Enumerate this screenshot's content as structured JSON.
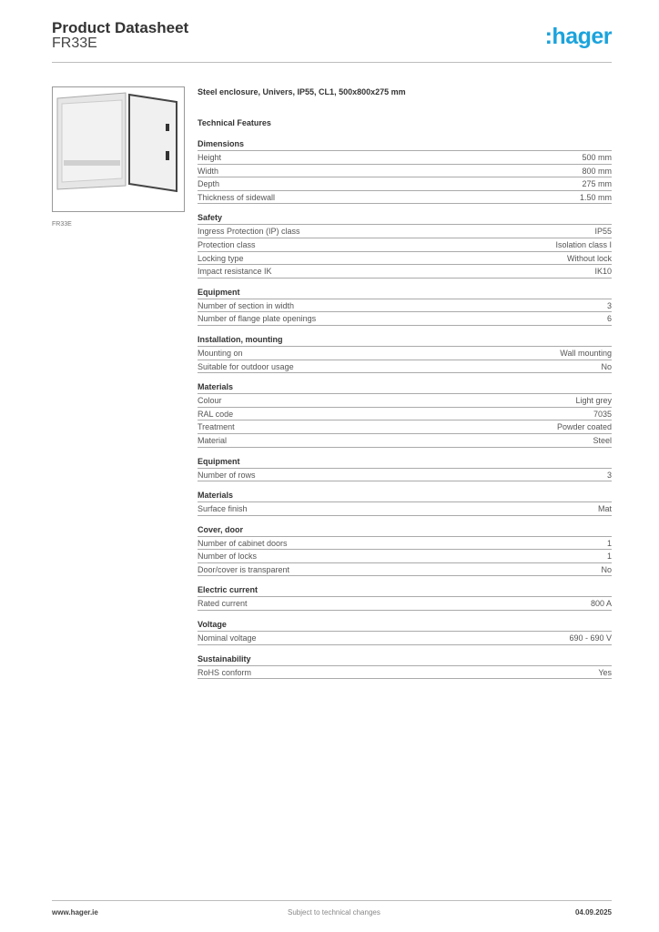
{
  "header": {
    "title": "Product Datasheet",
    "subtitle": "FR33E",
    "logo": ":hager"
  },
  "product": {
    "image_caption": "FR33E",
    "name": "Steel enclosure, Univers, IP55, CL1, 500x800x275 mm",
    "technical_features_label": "Technical Features"
  },
  "sections": [
    {
      "title": "Dimensions",
      "rows": [
        [
          "Height",
          "500 mm"
        ],
        [
          "Width",
          "800 mm"
        ],
        [
          "Depth",
          "275 mm"
        ],
        [
          "Thickness of sidewall",
          "1.50 mm"
        ]
      ]
    },
    {
      "title": "Safety",
      "rows": [
        [
          "Ingress Protection (IP) class",
          "IP55"
        ],
        [
          "Protection class",
          "Isolation class I"
        ],
        [
          "Locking type",
          "Without lock"
        ],
        [
          "Impact resistance IK",
          "IK10"
        ]
      ]
    },
    {
      "title": "Equipment",
      "rows": [
        [
          "Number of section in width",
          "3"
        ],
        [
          "Number of flange plate openings",
          "6"
        ]
      ]
    },
    {
      "title": "Installation, mounting",
      "rows": [
        [
          "Mounting on",
          "Wall mounting"
        ],
        [
          "Suitable for outdoor usage",
          "No"
        ]
      ]
    },
    {
      "title": "Materials",
      "rows": [
        [
          "Colour",
          "Light grey"
        ],
        [
          "RAL code",
          "7035"
        ],
        [
          "Treatment",
          "Powder coated"
        ],
        [
          "Material",
          "Steel"
        ]
      ]
    },
    {
      "title": "Equipment",
      "rows": [
        [
          "Number of rows",
          "3"
        ]
      ]
    },
    {
      "title": "Materials",
      "rows": [
        [
          "Surface finish",
          "Mat"
        ]
      ]
    },
    {
      "title": "Cover, door",
      "rows": [
        [
          "Number of cabinet doors",
          "1"
        ],
        [
          "Number of locks",
          "1"
        ],
        [
          "Door/cover is transparent",
          "No"
        ]
      ]
    },
    {
      "title": "Electric current",
      "rows": [
        [
          "Rated current",
          "800 A"
        ]
      ]
    },
    {
      "title": "Voltage",
      "rows": [
        [
          "Nominal voltage",
          "690 - 690 V"
        ]
      ]
    },
    {
      "title": "Sustainability",
      "rows": [
        [
          "RoHS conform",
          "Yes"
        ]
      ]
    }
  ],
  "footer": {
    "website": "www.hager.ie",
    "note": "Subject to technical changes",
    "date": "04.09.2025"
  },
  "colors": {
    "brand": "#1ba3dc"
  }
}
